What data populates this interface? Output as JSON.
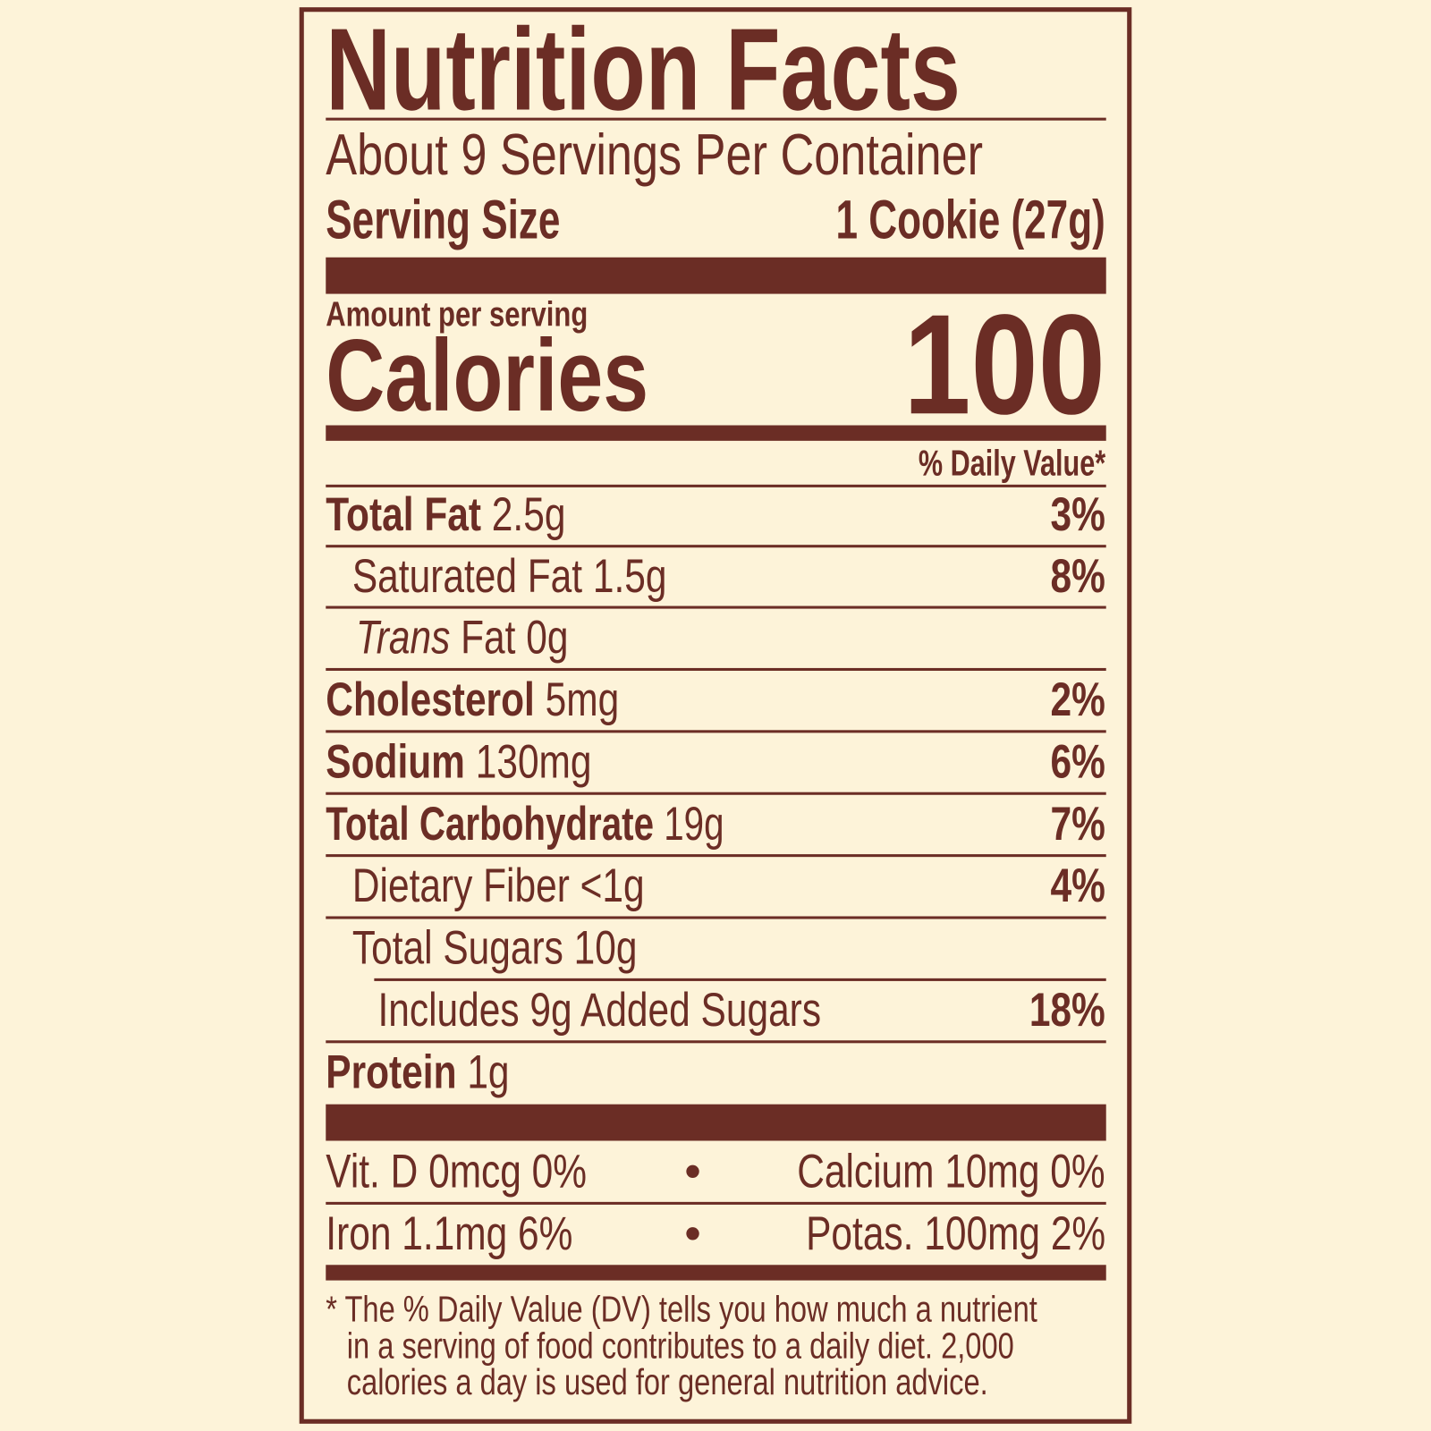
{
  "title": "Nutrition Facts",
  "servings_per_container": "About 9 Servings Per Container",
  "serving_size": {
    "label": "Serving Size",
    "value": "1 Cookie (27g)"
  },
  "amount_per_serving": "Amount per serving",
  "calories": {
    "label": "Calories",
    "value": "100"
  },
  "daily_value_header": "% Daily Value*",
  "rows": [
    {
      "label": "Total Fat",
      "amount": "2.5g",
      "dv": "3%"
    },
    {
      "label": "Saturated Fat",
      "amount": "1.5g",
      "dv": "8%"
    },
    {
      "label": "Trans",
      "amount": "Fat 0g",
      "dv": ""
    },
    {
      "label": "Cholesterol",
      "amount": "5mg",
      "dv": "2%"
    },
    {
      "label": "Sodium",
      "amount": "130mg",
      "dv": "6%"
    },
    {
      "label": "Total Carbohydrate",
      "amount": "19g",
      "dv": "7%"
    },
    {
      "label": "Dietary Fiber",
      "amount": "<1g",
      "dv": "4%"
    },
    {
      "label": "Total Sugars",
      "amount": "10g",
      "dv": ""
    },
    {
      "label": "Includes 9g Added Sugars",
      "amount": "",
      "dv": "18%"
    },
    {
      "label": "Protein",
      "amount": "1g",
      "dv": ""
    }
  ],
  "micros": [
    {
      "left": "Vit. D 0mcg 0%",
      "right": "Calcium 10mg 0%"
    },
    {
      "left": "Iron 1.1mg 6%",
      "right": "Potas. 100mg 2%"
    }
  ],
  "footnote": {
    "line1": "* The % Daily Value (DV) tells you how much a nutrient",
    "line2": "in a serving of food contributes to a daily diet. 2,000",
    "line3": "calories a day is used for general nutrition advice."
  },
  "colors": {
    "background": "#fdf3d9",
    "ink": "#6b2d25"
  }
}
